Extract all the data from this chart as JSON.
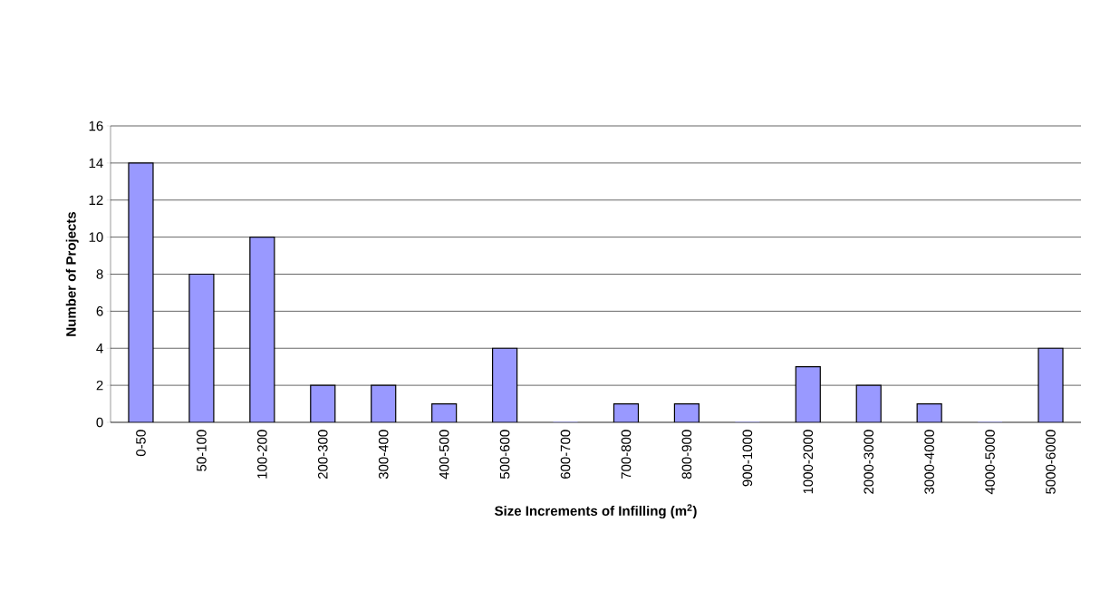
{
  "chart_data": {
    "type": "bar",
    "xlabel": "Size Increments of Infilling (m$^{2}$)",
    "ylabel": "Number of Projects",
    "categories": [
      "0-50",
      "50-100",
      "100-200",
      "200-300",
      "300-400",
      "400-500",
      "500-600",
      "600-700",
      "700-800",
      "800-900",
      "900-1000",
      "1000-2000",
      "2000-3000",
      "3000-4000",
      "4000-5000",
      "5000-6000"
    ],
    "values": [
      14,
      8,
      10,
      2,
      2,
      1,
      4,
      0,
      1,
      1,
      0,
      3,
      2,
      1,
      0,
      4
    ],
    "color": "#9999ff",
    "ylim": [
      0,
      16
    ],
    "yticks": [
      0,
      2,
      4,
      6,
      8,
      10,
      12,
      14,
      16
    ],
    "grid": "y"
  }
}
